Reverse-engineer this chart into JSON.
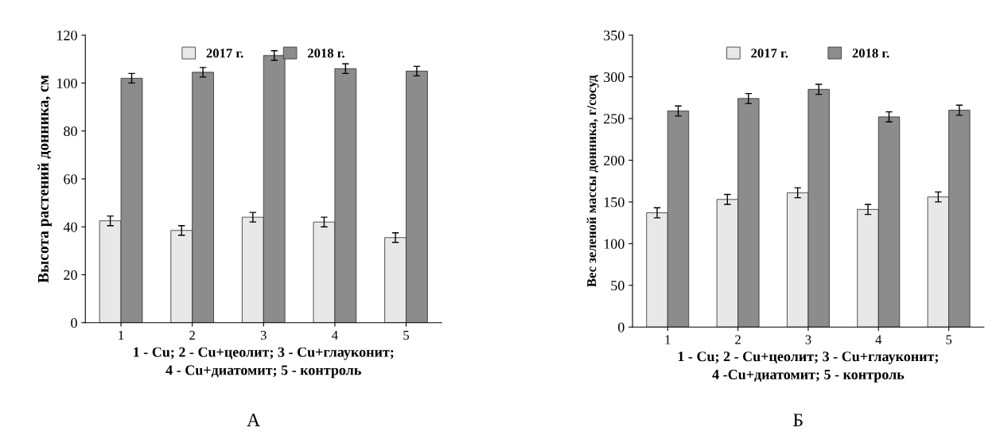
{
  "chart_data": [
    {
      "type": "bar",
      "categories": [
        "1",
        "2",
        "3",
        "4",
        "5"
      ],
      "ylabel": "Высота растений донника, см",
      "xlabel": "1 - Cu; 2 - Cu+цеолит; 3 - Cu+глауконит;\n4 - Cu+диатомит; 5 - контроль",
      "ylim": [
        0,
        120
      ],
      "yticks": [
        0,
        20,
        40,
        60,
        80,
        100,
        120
      ],
      "legend": "top",
      "grid": false,
      "series": [
        {
          "name": "2017 г.",
          "color": "#e8e8e8",
          "values": [
            42.5,
            38.5,
            44,
            42,
            35.5
          ],
          "errors": [
            2,
            2,
            2,
            2,
            2
          ]
        },
        {
          "name": "2018 г.",
          "color": "#8c8c8c",
          "values": [
            102,
            104.5,
            111.5,
            106,
            105
          ],
          "errors": [
            2,
            2,
            2,
            2,
            2
          ]
        }
      ],
      "annotations": [
        "А"
      ]
    },
    {
      "type": "bar",
      "categories": [
        "1",
        "2",
        "3",
        "4",
        "5"
      ],
      "ylabel": "Вес зеленой массы донника, г/сосуд",
      "xlabel": "1 - Cu; 2 - Cu+цеолит; 3 - Cu+глауконит;\n4 -Cu+диатомит; 5 - контроль",
      "ylim": [
        0,
        350
      ],
      "yticks": [
        0,
        50,
        100,
        150,
        200,
        250,
        300,
        350
      ],
      "legend": "top",
      "grid": false,
      "series": [
        {
          "name": "2017 г.",
          "color": "#e8e8e8",
          "values": [
            137,
            153,
            161,
            141,
            156
          ],
          "errors": [
            6,
            6,
            6,
            6,
            6
          ]
        },
        {
          "name": "2018 г.",
          "color": "#8c8c8c",
          "values": [
            259,
            274,
            285,
            252,
            260
          ],
          "errors": [
            6,
            6,
            6,
            6,
            6
          ]
        }
      ],
      "annotations": [
        "Б"
      ]
    }
  ]
}
